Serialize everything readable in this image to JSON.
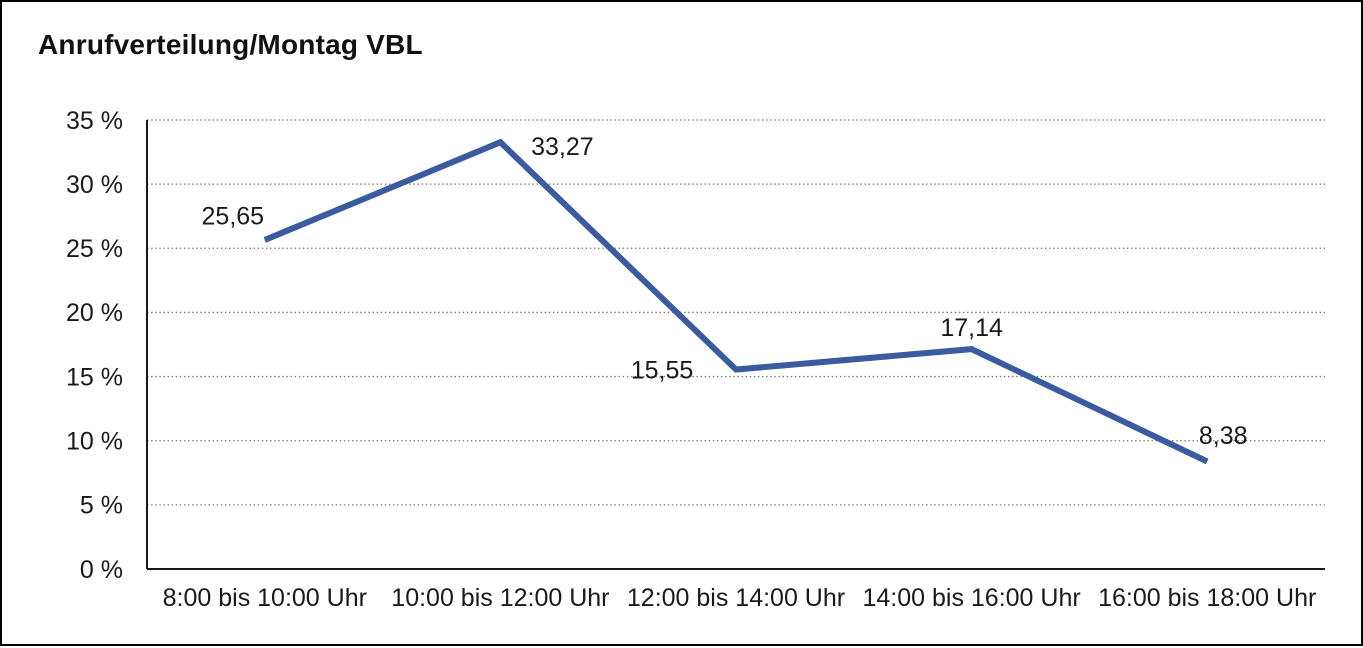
{
  "title": "Anrufverteilung/Montag VBL",
  "colors": {
    "line": "#3B5BA0",
    "axis": "#1a1a1a",
    "grid": "#7a7a7a",
    "text": "#1a1a1a",
    "background": "#ffffff",
    "border": "#000000"
  },
  "chart_data": {
    "type": "line",
    "title": "Anrufverteilung/Montag VBL",
    "categories": [
      "8:00 bis 10:00 Uhr",
      "10:00 bis 12:00 Uhr",
      "12:00 bis 14:00 Uhr",
      "14:00 bis 16:00 Uhr",
      "16:00 bis 18:00 Uhr"
    ],
    "values": [
      25.65,
      33.27,
      15.55,
      17.14,
      8.38
    ],
    "value_labels": [
      "25,65",
      "33,27",
      "15,55",
      "17,14",
      "8,38"
    ],
    "ytick_labels": [
      "0 %",
      "5 %",
      "10 %",
      "15 %",
      "20 %",
      "25 %",
      "30 %",
      "35 %"
    ],
    "ytick_values": [
      0,
      5,
      10,
      15,
      20,
      25,
      30,
      35
    ],
    "ylim": [
      0,
      35
    ],
    "xlabel": "",
    "ylabel": "",
    "grid": "horizontal-dotted",
    "legend": "none",
    "line_color": "#3B5BA0",
    "line_width": 6
  }
}
